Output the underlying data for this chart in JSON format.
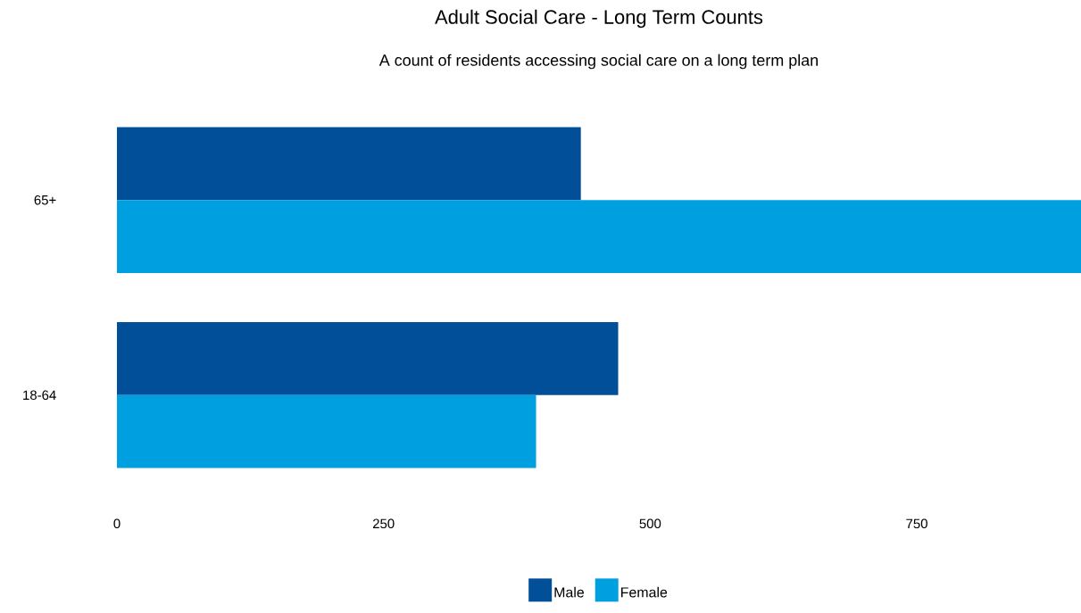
{
  "chart_data": {
    "type": "bar",
    "orientation": "horizontal",
    "title": "Adult Social Care - Long Term Counts",
    "subtitle": "A count of residents accessing social care on a long term plan",
    "categories": [
      "65+",
      "18-64"
    ],
    "series": [
      {
        "name": "Male",
        "color": "#004f98",
        "values": [
          435,
          470
        ]
      },
      {
        "name": "Female",
        "color": "#00a0e0",
        "values": [
          904,
          393
        ]
      }
    ],
    "xlim": [
      0,
      904
    ],
    "xticks": [
      0,
      250,
      500,
      750
    ],
    "legend": "bottom"
  }
}
